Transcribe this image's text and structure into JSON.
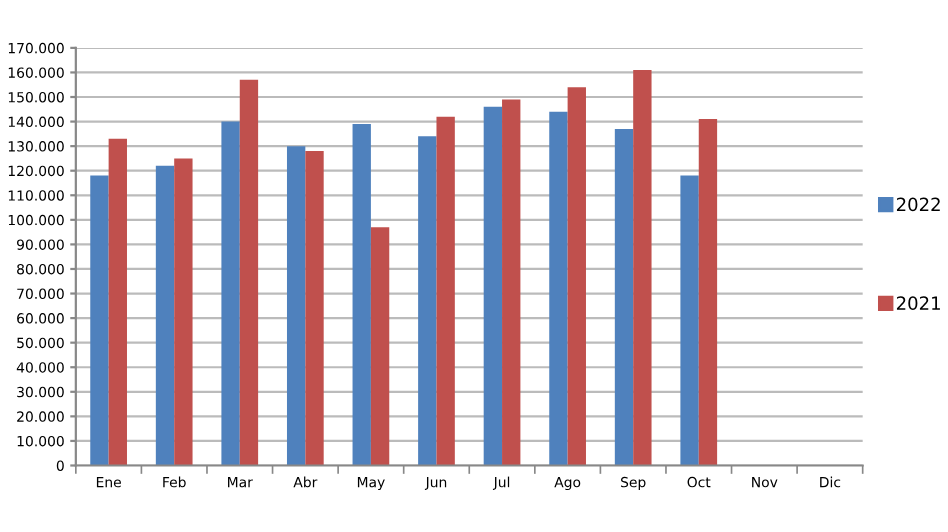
{
  "chart_data": {
    "type": "bar",
    "categories": [
      "Ene",
      "Feb",
      "Mar",
      "Abr",
      "May",
      "Jun",
      "Jul",
      "Ago",
      "Sep",
      "Oct",
      "Nov",
      "Dic"
    ],
    "series": [
      {
        "name": "2022",
        "color": "#4f81bd",
        "values": [
          118000,
          122000,
          140000,
          130000,
          139000,
          134000,
          146000,
          144000,
          137000,
          118000,
          null,
          null
        ]
      },
      {
        "name": "2021",
        "color": "#c0504d",
        "values": [
          133000,
          125000,
          157000,
          128000,
          97000,
          142000,
          149000,
          154000,
          161000,
          141000,
          null,
          null
        ]
      }
    ],
    "ylim": [
      0,
      170000
    ],
    "yticks": [
      {
        "value": 0,
        "label": "0"
      },
      {
        "value": 10000,
        "label": "10.000"
      },
      {
        "value": 20000,
        "label": "20.000"
      },
      {
        "value": 30000,
        "label": "30.000"
      },
      {
        "value": 40000,
        "label": "40.000"
      },
      {
        "value": 50000,
        "label": "50.000"
      },
      {
        "value": 60000,
        "label": "60.000"
      },
      {
        "value": 70000,
        "label": "70.000"
      },
      {
        "value": 80000,
        "label": "80.000"
      },
      {
        "value": 90000,
        "label": "90.000"
      },
      {
        "value": 100000,
        "label": "100.000"
      },
      {
        "value": 110000,
        "label": "110.000"
      },
      {
        "value": 120000,
        "label": "120.000"
      },
      {
        "value": 130000,
        "label": "130.000"
      },
      {
        "value": 140000,
        "label": "140.000"
      },
      {
        "value": 150000,
        "label": "150.000"
      },
      {
        "value": 160000,
        "label": "160.000"
      },
      {
        "value": 170000,
        "label": "170.000"
      }
    ],
    "grid": "y",
    "legend": "right"
  }
}
